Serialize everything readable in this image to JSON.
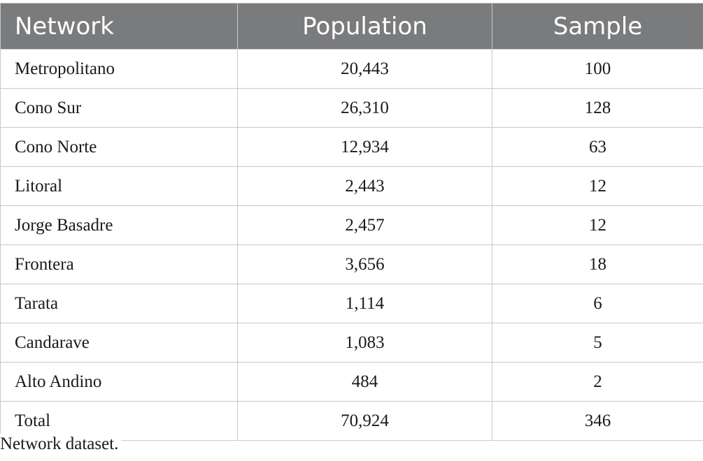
{
  "table": {
    "headers": {
      "network": "Network",
      "population": "Population",
      "sample": "Sample"
    },
    "rows": [
      {
        "network": "Metropolitano",
        "population": "20,443",
        "sample": "100"
      },
      {
        "network": "Cono Sur",
        "population": "26,310",
        "sample": "128"
      },
      {
        "network": "Cono Norte",
        "population": "12,934",
        "sample": "63"
      },
      {
        "network": "Litoral",
        "population": "2,443",
        "sample": "12"
      },
      {
        "network": "Jorge Basadre",
        "population": "2,457",
        "sample": "12"
      },
      {
        "network": "Frontera",
        "population": "3,656",
        "sample": "18"
      },
      {
        "network": "Tarata",
        "population": "1,114",
        "sample": "6"
      },
      {
        "network": "Candarave",
        "population": "1,083",
        "sample": "5"
      },
      {
        "network": "Alto Andino",
        "population": "484",
        "sample": "2"
      },
      {
        "network": "Total",
        "population": "70,924",
        "sample": "346"
      }
    ]
  },
  "caption": "Network dataset."
}
